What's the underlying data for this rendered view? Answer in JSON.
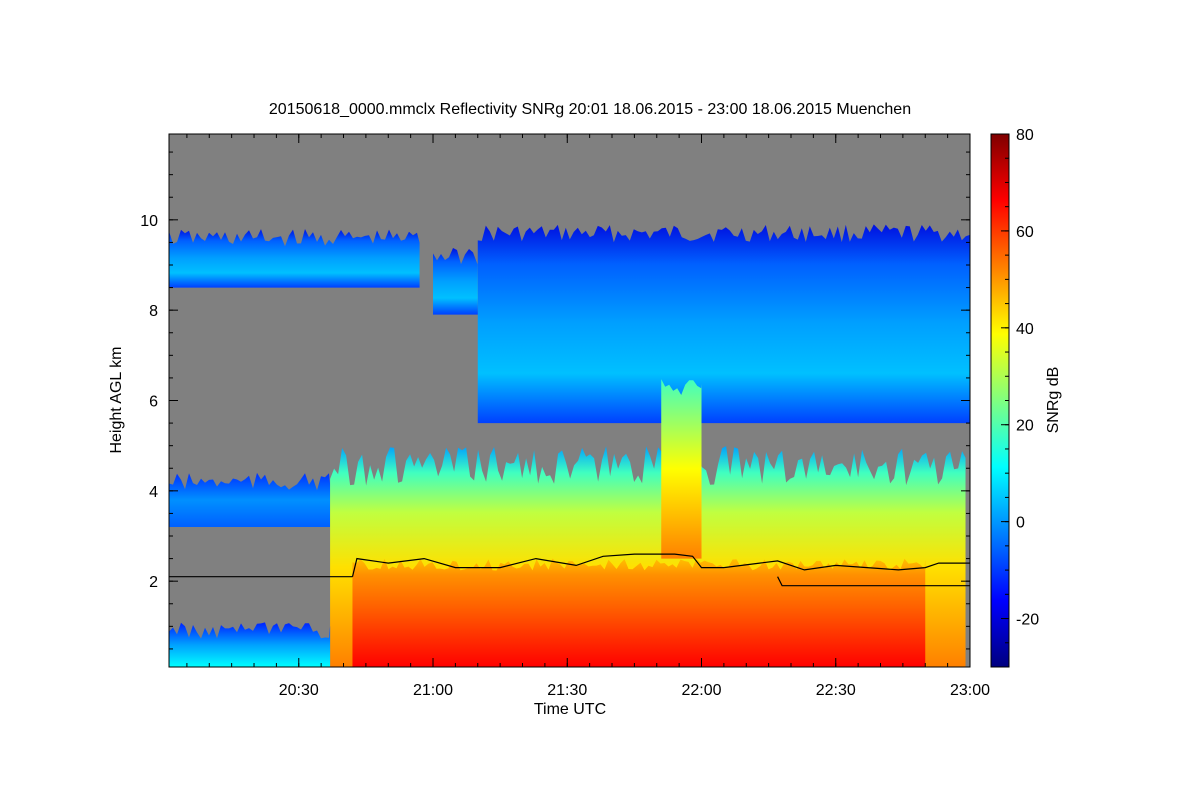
{
  "chart_data": {
    "type": "heatmap",
    "title": "20150618_0000.mmclx Reflectivity SNRg   20:01 18.06.2015 - 23:00 18.06.2015 Muenchen",
    "xlabel": "Time UTC",
    "ylabel": "Height AGL km",
    "x_range_minutes_utc": [
      1201,
      1380
    ],
    "y_range_km": [
      0.1,
      11.9
    ],
    "x_ticks": [
      {
        "minute": 1230,
        "label": "20:30"
      },
      {
        "minute": 1260,
        "label": "21:00"
      },
      {
        "minute": 1290,
        "label": "21:30"
      },
      {
        "minute": 1320,
        "label": "22:00"
      },
      {
        "minute": 1350,
        "label": "22:30"
      },
      {
        "minute": 1380,
        "label": "23:00"
      }
    ],
    "y_ticks": [
      {
        "value": 2,
        "label": "2"
      },
      {
        "value": 4,
        "label": "4"
      },
      {
        "value": 6,
        "label": "6"
      },
      {
        "value": 8,
        "label": "8"
      },
      {
        "value": 10,
        "label": "10"
      }
    ],
    "colorbar": {
      "label": "SNRg dB",
      "range": [
        -30,
        80
      ],
      "ticks": [
        {
          "value": -20,
          "label": "-20"
        },
        {
          "value": 0,
          "label": "0"
        },
        {
          "value": 20,
          "label": "20"
        },
        {
          "value": 40,
          "label": "40"
        },
        {
          "value": 60,
          "label": "60"
        },
        {
          "value": 80,
          "label": "80"
        }
      ],
      "colormap": [
        "#00007f",
        "#0000ff",
        "#0080ff",
        "#00ffff",
        "#80ff80",
        "#ffff00",
        "#ff8000",
        "#ff0000",
        "#7f0000"
      ]
    },
    "background_no_signal_color": "#808080",
    "regions": [
      {
        "name": "upper-cirrus-left",
        "minute_start": 1201,
        "minute_end": 1257,
        "base_km": 8.5,
        "top_km": 9.8,
        "snr_db": 0
      },
      {
        "name": "upper-cirrus-patch",
        "minute_start": 1260,
        "minute_end": 1270,
        "base_km": 7.9,
        "top_km": 9.4,
        "snr_db": -5
      },
      {
        "name": "upper-cirrus-main",
        "minute_start": 1270,
        "minute_end": 1380,
        "base_km": 5.5,
        "top_km": 9.9,
        "snr_db": 5
      },
      {
        "name": "mid-level-left",
        "minute_start": 1201,
        "minute_end": 1237,
        "base_km": 3.2,
        "top_km": 4.4,
        "snr_db": 0
      },
      {
        "name": "convective-tower",
        "minute_start": 1311,
        "minute_end": 1320,
        "base_km": 2.5,
        "top_km": 6.5,
        "snr_db": 40
      },
      {
        "name": "precipitation-column",
        "minute_start": 1237,
        "minute_end": 1379,
        "base_km": 0.1,
        "top_km": 5.0,
        "snr_db": 40
      },
      {
        "name": "melting-layer-core",
        "minute_start": 1242,
        "minute_end": 1370,
        "base_km": 0.1,
        "top_km": 2.5,
        "snr_db": 65
      },
      {
        "name": "surface-clutter",
        "minute_start": 1201,
        "minute_end": 1237,
        "base_km": 0.1,
        "top_km": 1.1,
        "snr_db": 10
      }
    ],
    "lines": [
      {
        "name": "reference-height-line",
        "minutes": [
          1201,
          1242
        ],
        "heights_km": [
          2.1,
          2.1
        ]
      },
      {
        "name": "melting-layer-line",
        "minutes": [
          1242,
          1243,
          1250,
          1258,
          1265,
          1275,
          1283,
          1292,
          1298,
          1305,
          1314,
          1318,
          1320,
          1325,
          1333,
          1337,
          1343,
          1350,
          1357,
          1364,
          1370,
          1373,
          1380
        ],
        "heights_km": [
          2.1,
          2.5,
          2.4,
          2.5,
          2.3,
          2.3,
          2.5,
          2.35,
          2.55,
          2.6,
          2.6,
          2.55,
          2.3,
          2.3,
          2.4,
          2.45,
          2.25,
          2.35,
          2.3,
          2.25,
          2.3,
          2.4,
          2.4
        ]
      },
      {
        "name": "lower-step-line",
        "minutes": [
          1337,
          1338,
          1380
        ],
        "heights_km": [
          2.1,
          1.9,
          1.9
        ]
      }
    ]
  }
}
